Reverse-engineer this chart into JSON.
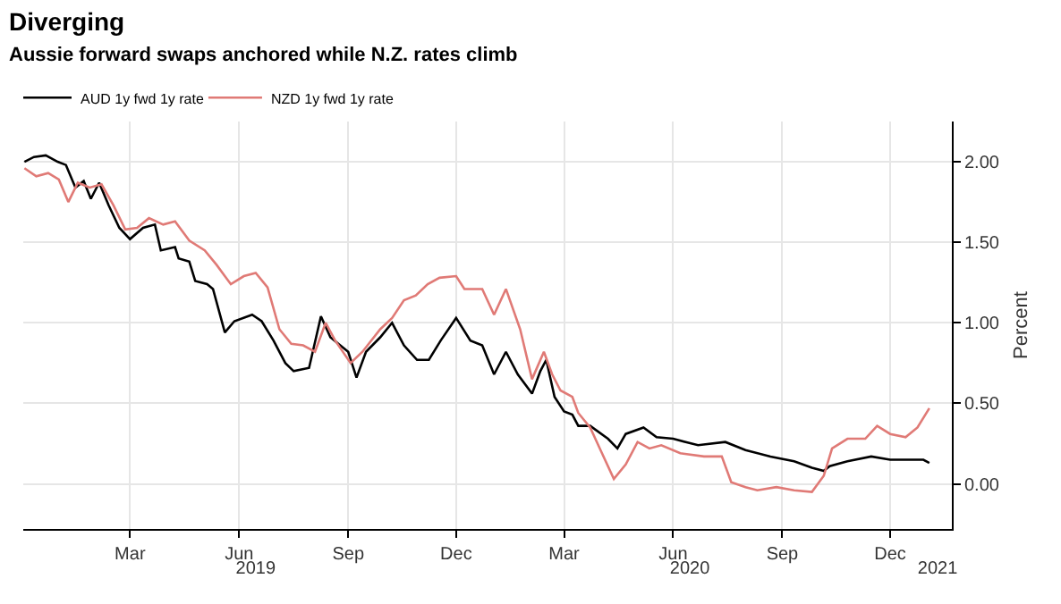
{
  "chart_data": {
    "type": "line",
    "title": "Diverging",
    "subtitle": "Aussie forward swaps anchored while N.Z. rates climb",
    "ylabel": "Percent",
    "series": [
      {
        "name": "AUD 1y fwd 1y rate",
        "color": "#000000",
        "x": [
          "2018-12-02",
          "2018-12-10",
          "2018-12-20",
          "2018-12-30",
          "2019-01-06",
          "2019-01-14",
          "2019-01-21",
          "2019-01-27",
          "2019-02-03",
          "2019-02-11",
          "2019-02-20",
          "2019-03-01",
          "2019-03-12",
          "2019-03-22",
          "2019-03-27",
          "2019-04-08",
          "2019-04-11",
          "2019-04-20",
          "2019-04-25",
          "2019-05-05",
          "2019-05-10",
          "2019-05-20",
          "2019-05-28",
          "2019-06-12",
          "2019-06-20",
          "2019-06-30",
          "2019-07-10",
          "2019-07-17",
          "2019-07-30",
          "2019-08-09",
          "2019-08-17",
          "2019-09-01",
          "2019-09-08",
          "2019-09-16",
          "2019-09-28",
          "2019-10-08",
          "2019-10-18",
          "2019-10-29",
          "2019-11-08",
          "2019-11-18",
          "2019-12-01",
          "2019-12-13",
          "2019-12-23",
          "2020-01-02",
          "2020-01-12",
          "2020-01-22",
          "2020-02-03",
          "2020-02-10",
          "2020-02-15",
          "2020-02-22",
          "2020-03-01",
          "2020-03-08",
          "2020-03-13",
          "2020-03-23",
          "2020-04-07",
          "2020-04-15",
          "2020-04-22",
          "2020-05-07",
          "2020-05-18",
          "2020-06-01",
          "2020-06-22",
          "2020-07-15",
          "2020-08-01",
          "2020-08-22",
          "2020-09-11",
          "2020-09-26",
          "2020-10-06",
          "2020-10-11",
          "2020-10-26",
          "2020-11-15",
          "2020-12-01",
          "2020-12-19",
          "2020-12-29",
          "2021-01-03"
        ],
        "values": [
          2.0,
          2.03,
          2.04,
          2.0,
          1.98,
          1.84,
          1.88,
          1.77,
          1.87,
          1.73,
          1.59,
          1.52,
          1.59,
          1.61,
          1.45,
          1.47,
          1.4,
          1.38,
          1.26,
          1.24,
          1.21,
          0.94,
          1.01,
          1.05,
          1.01,
          0.89,
          0.75,
          0.7,
          0.72,
          1.04,
          0.91,
          0.82,
          0.66,
          0.82,
          0.91,
          1.0,
          0.86,
          0.77,
          0.77,
          0.89,
          1.03,
          0.89,
          0.86,
          0.68,
          0.82,
          0.68,
          0.56,
          0.7,
          0.77,
          0.54,
          0.45,
          0.43,
          0.36,
          0.36,
          0.28,
          0.22,
          0.31,
          0.35,
          0.29,
          0.28,
          0.24,
          0.26,
          0.21,
          0.17,
          0.14,
          0.1,
          0.08,
          0.11,
          0.14,
          0.17,
          0.15,
          0.15,
          0.15,
          0.13
        ]
      },
      {
        "name": "NZD 1y fwd 1y rate",
        "color": "#e07a76",
        "x": [
          "2018-12-02",
          "2018-12-12",
          "2018-12-22",
          "2018-12-31",
          "2019-01-08",
          "2019-01-16",
          "2019-01-26",
          "2019-02-05",
          "2019-02-15",
          "2019-02-25",
          "2019-03-07",
          "2019-03-17",
          "2019-03-29",
          "2019-04-08",
          "2019-04-20",
          "2019-05-03",
          "2019-05-13",
          "2019-05-25",
          "2019-06-05",
          "2019-06-15",
          "2019-06-25",
          "2019-07-05",
          "2019-07-15",
          "2019-07-25",
          "2019-08-04",
          "2019-08-13",
          "2019-08-21",
          "2019-09-03",
          "2019-09-13",
          "2019-09-28",
          "2019-10-08",
          "2019-10-18",
          "2019-10-28",
          "2019-11-07",
          "2019-11-17",
          "2019-12-01",
          "2019-12-08",
          "2019-12-23",
          "2020-01-02",
          "2020-01-12",
          "2020-01-24",
          "2020-02-03",
          "2020-02-13",
          "2020-02-20",
          "2020-02-27",
          "2020-03-08",
          "2020-03-13",
          "2020-03-23",
          "2020-04-02",
          "2020-04-12",
          "2020-04-22",
          "2020-05-02",
          "2020-05-12",
          "2020-05-22",
          "2020-06-07",
          "2020-06-27",
          "2020-07-12",
          "2020-07-20",
          "2020-08-01",
          "2020-08-11",
          "2020-08-27",
          "2020-09-11",
          "2020-09-26",
          "2020-10-06",
          "2020-10-13",
          "2020-10-26",
          "2020-11-10",
          "2020-11-20",
          "2020-12-01",
          "2020-12-14",
          "2020-12-24",
          "2021-01-03"
        ],
        "values": [
          1.96,
          1.91,
          1.93,
          1.89,
          1.75,
          1.87,
          1.84,
          1.86,
          1.73,
          1.58,
          1.59,
          1.65,
          1.61,
          1.63,
          1.51,
          1.45,
          1.36,
          1.24,
          1.29,
          1.31,
          1.22,
          0.96,
          0.87,
          0.86,
          0.82,
          1.0,
          0.89,
          0.75,
          0.82,
          0.96,
          1.03,
          1.14,
          1.17,
          1.24,
          1.28,
          1.29,
          1.21,
          1.21,
          1.05,
          1.21,
          0.96,
          0.65,
          0.82,
          0.68,
          0.58,
          0.54,
          0.44,
          0.35,
          0.19,
          0.03,
          0.12,
          0.26,
          0.22,
          0.24,
          0.19,
          0.17,
          0.17,
          0.01,
          -0.02,
          -0.04,
          -0.02,
          -0.04,
          -0.05,
          0.05,
          0.22,
          0.28,
          0.28,
          0.36,
          0.31,
          0.29,
          0.35,
          0.47
        ]
      }
    ],
    "xlim": [
      "2018-12-01",
      "2021-01-22"
    ],
    "xticks": [
      {
        "value": "2019-03-01",
        "label": "Mar"
      },
      {
        "value": "2019-06-01",
        "label": "Jun"
      },
      {
        "value": "2019-09-01",
        "label": "Sep"
      },
      {
        "value": "2019-12-01",
        "label": "Dec"
      },
      {
        "value": "2020-03-01",
        "label": "Mar"
      },
      {
        "value": "2020-06-01",
        "label": "Jun"
      },
      {
        "value": "2020-09-01",
        "label": "Sep"
      },
      {
        "value": "2020-12-01",
        "label": "Dec"
      }
    ],
    "x2lim": [
      "2018-12-01",
      "2021-01-22"
    ],
    "x2ticks": [
      {
        "value": "2019-06-15",
        "label": "2019"
      },
      {
        "value": "2020-06-15",
        "label": "2020"
      },
      {
        "value": "2021-01-10",
        "label": "2021"
      }
    ],
    "ylim": [
      -0.28,
      2.25
    ],
    "yticks": [
      {
        "value": 0,
        "label": "0.00"
      },
      {
        "value": 0.5,
        "label": "0.50"
      },
      {
        "value": 1,
        "label": "1.00"
      },
      {
        "value": 1.5,
        "label": "1.50"
      },
      {
        "value": 2,
        "label": "2.00"
      }
    ],
    "grid": true,
    "legend": "top left",
    "line_style": "solid",
    "marker": "none"
  }
}
